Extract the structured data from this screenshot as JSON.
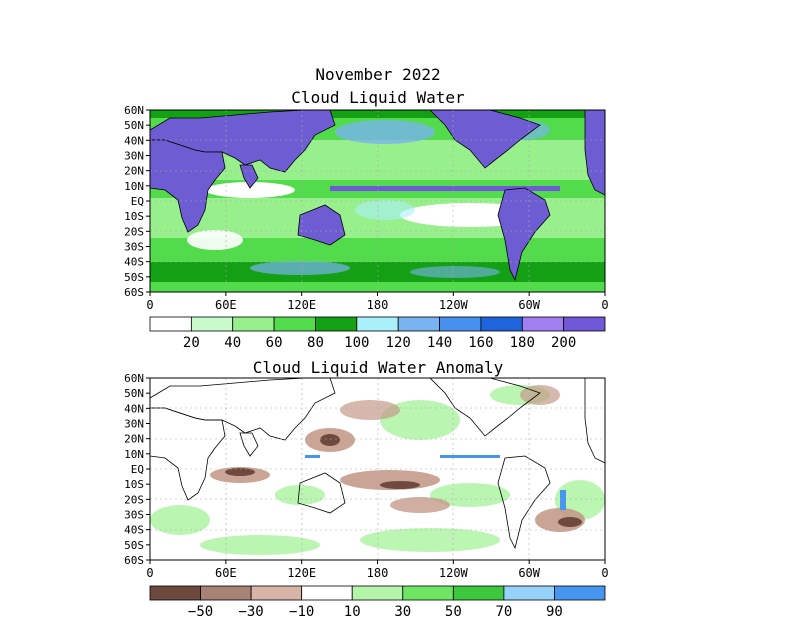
{
  "header": {
    "title_line1": "November 2022",
    "title_line2": "Cloud Liquid Water"
  },
  "panels": [
    {
      "id": "clw",
      "lat_labels": [
        "60N",
        "50N",
        "40N",
        "30N",
        "20N",
        "10N",
        "EQ",
        "10S",
        "20S",
        "30S",
        "40S",
        "50S",
        "60S"
      ],
      "lon_labels": [
        "0",
        "60E",
        "120E",
        "180",
        "120W",
        "60W",
        "0"
      ],
      "colorbar": {
        "labels": [
          "20",
          "40",
          "60",
          "80",
          "100",
          "120",
          "140",
          "160",
          "180",
          "200"
        ],
        "colors": [
          "#ffffff",
          "#c8facc",
          "#98f08c",
          "#52dc4c",
          "#14a014",
          "#aaf0fa",
          "#78b4f0",
          "#4690f0",
          "#1e64dc",
          "#a080f0",
          "#7058d8"
        ]
      }
    },
    {
      "id": "anomaly",
      "title": "Cloud Liquid Water Anomaly",
      "lat_labels": [
        "60N",
        "50N",
        "40N",
        "30N",
        "20N",
        "10N",
        "EQ",
        "10S",
        "20S",
        "30S",
        "40S",
        "50S",
        "60S"
      ],
      "lon_labels": [
        "0",
        "60E",
        "120E",
        "180",
        "120W",
        "60W",
        "0"
      ],
      "colorbar": {
        "labels": [
          "−50",
          "−30",
          "−10",
          "10",
          "30",
          "50",
          "70",
          "90"
        ],
        "colors": [
          "#6e4a3e",
          "#a88274",
          "#d8b4a8",
          "#ffffff",
          "#b4f5aa",
          "#6ee664",
          "#3cc83c",
          "#96d2fa",
          "#4696f0"
        ]
      }
    }
  ],
  "style": {
    "land_color": "#6d5cd2",
    "ocean_base_color": "#4ecf48",
    "anomaly_positive": "#b4f5aa",
    "anomaly_negative": "#c49a8a"
  }
}
